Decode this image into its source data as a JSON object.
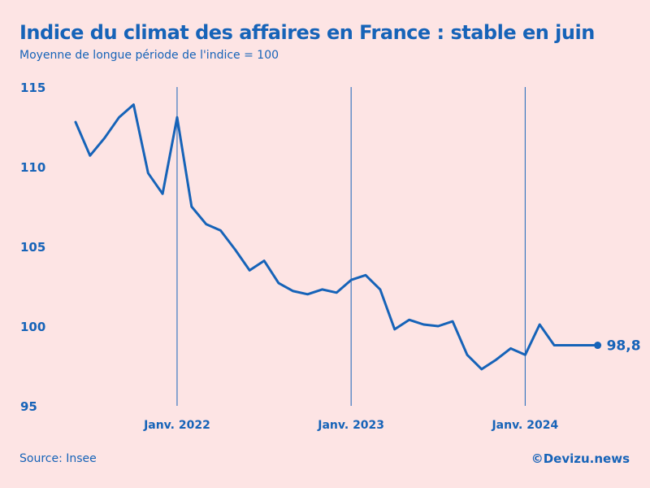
{
  "header": {
    "title": "Indice du climat des affaires en France : stable en juin",
    "subtitle": "Moyenne de longue période de l'indice = 100"
  },
  "footer": {
    "source": "Source: Insee",
    "brand": "©Devizu.news"
  },
  "colors": {
    "background": "#fde4e4",
    "accent": "#1663b8"
  },
  "chart_data": {
    "type": "line",
    "title": "Indice du climat des affaires en France : stable en juin",
    "subtitle": "Moyenne de longue période de l'indice = 100",
    "x": [
      "2021-06",
      "2021-07",
      "2021-08",
      "2021-09",
      "2021-10",
      "2021-11",
      "2021-12",
      "2022-01",
      "2022-02",
      "2022-03",
      "2022-04",
      "2022-05",
      "2022-06",
      "2022-07",
      "2022-08",
      "2022-09",
      "2022-10",
      "2022-11",
      "2022-12",
      "2023-01",
      "2023-02",
      "2023-03",
      "2023-04",
      "2023-05",
      "2023-06",
      "2023-07",
      "2023-08",
      "2023-09",
      "2023-10",
      "2023-11",
      "2023-12",
      "2024-01",
      "2024-02",
      "2024-03",
      "2024-04",
      "2024-05",
      "2024-06"
    ],
    "series": [
      {
        "values": [
          112.8,
          110.7,
          111.8,
          113.1,
          113.9,
          109.6,
          108.3,
          113.1,
          107.5,
          106.4,
          106.0,
          104.8,
          103.5,
          104.1,
          102.7,
          102.2,
          102.0,
          102.3,
          102.1,
          102.9,
          103.2,
          102.3,
          99.8,
          100.4,
          100.1,
          100.0,
          100.3,
          98.2,
          97.3,
          97.9,
          98.6,
          98.2,
          100.1,
          98.8,
          98.8,
          98.8,
          98.8
        ]
      }
    ],
    "ylim": [
      95,
      115
    ],
    "yticks": [
      "95",
      "100",
      "105",
      "110",
      "115"
    ],
    "year_markers": [
      {
        "date": "2022-01",
        "label": "Janv. 2022"
      },
      {
        "date": "2023-01",
        "label": "Janv. 2023"
      },
      {
        "date": "2024-01",
        "label": "Janv. 2024"
      }
    ],
    "last_value_label": "98,8",
    "grid": false,
    "legend": "none"
  }
}
